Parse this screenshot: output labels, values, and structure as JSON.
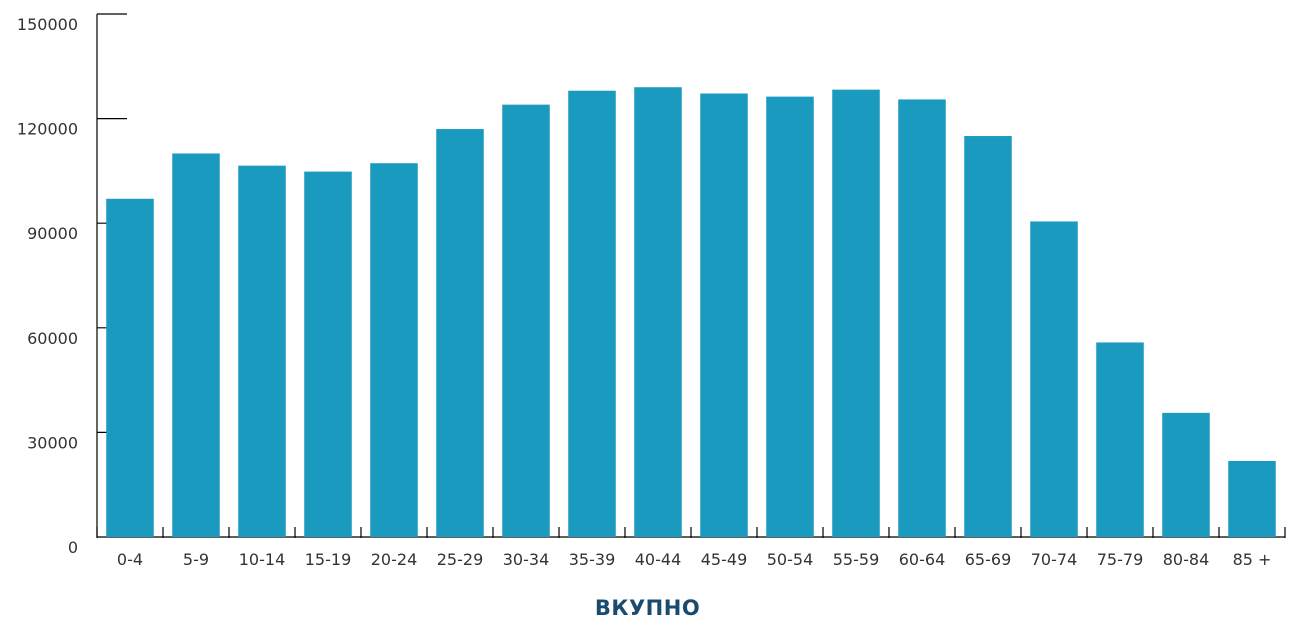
{
  "chart_data": {
    "type": "bar",
    "title": "",
    "xlabel": "ВКУПНО",
    "ylabel": "",
    "ylim": [
      0,
      150000
    ],
    "yticks": [
      0,
      30000,
      60000,
      90000,
      120000,
      150000
    ],
    "categories": [
      "0-4",
      "5-9",
      "10-14",
      "15-19",
      "20-24",
      "25-29",
      "30-34",
      "35-39",
      "40-44",
      "45-49",
      "50-54",
      "55-59",
      "60-64",
      "65-69",
      "70-74",
      "75-79",
      "80-84",
      "85 +"
    ],
    "values": [
      97000,
      110000,
      106500,
      104800,
      107200,
      117000,
      124000,
      128000,
      129000,
      127200,
      126300,
      128300,
      125500,
      115000,
      90500,
      55800,
      35600,
      21800
    ],
    "bar_color": "#1b9abf",
    "grid": false
  }
}
